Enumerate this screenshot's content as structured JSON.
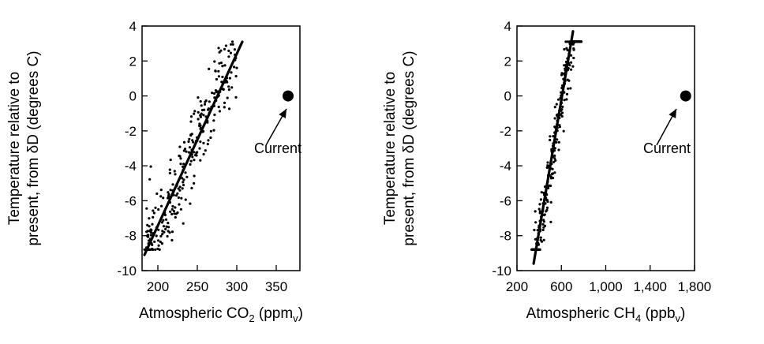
{
  "chart_data": [
    {
      "type": "scatter",
      "xlabel_main": "Atmospheric CO",
      "xlabel_sub": "2",
      "xlabel_unit_open": " (ppm",
      "xlabel_unit_sub": "v",
      "xlabel_unit_close": ")",
      "ylabel_line1": "Temperature relative to",
      "ylabel_line2": "present, from δD (degrees C)",
      "xlim": [
        180,
        380
      ],
      "ylim": [
        -10,
        4
      ],
      "xticks": [
        200,
        250,
        300,
        350
      ],
      "xtick_labels": [
        "200",
        "250",
        "300",
        "350"
      ],
      "yticks": [
        -10,
        -8,
        -6,
        -4,
        -2,
        0,
        2,
        4
      ],
      "ytick_labels": [
        "-10",
        "-8",
        "-6",
        "-4",
        "-2",
        "0",
        "2",
        "4"
      ],
      "fit_line": {
        "x": [
          183,
          307
        ],
        "y": [
          -9.1,
          3.1
        ]
      },
      "scatter_trend": {
        "slope": 0.0984,
        "x_at_zero": 275.5,
        "spread_y": 1.2,
        "x_range": [
          183,
          300
        ],
        "n": 280,
        "seed": 11
      },
      "current_point": {
        "x": 365,
        "y": 0
      },
      "annotation": "Current"
    },
    {
      "type": "scatter",
      "xlabel_main": "Atmospheric CH",
      "xlabel_sub": "4",
      "xlabel_unit_open": " (ppb",
      "xlabel_unit_sub": "v",
      "xlabel_unit_close": ")",
      "ylabel_line1": "Temperature relative to",
      "ylabel_line2": "present, from δD (degrees C)",
      "xlim": [
        200,
        1800
      ],
      "ylim": [
        -10,
        4
      ],
      "xticks": [
        200,
        600,
        1000,
        1400,
        1800
      ],
      "xtick_labels": [
        "200",
        "600",
        "1,000",
        "1,400",
        "1,800"
      ],
      "yticks": [
        -10,
        -8,
        -6,
        -4,
        -2,
        0,
        2,
        4
      ],
      "ytick_labels": [
        "-10",
        "-8",
        "-6",
        "-4",
        "-2",
        "0",
        "2",
        "4"
      ],
      "fit_line": {
        "x": [
          350,
          705
        ],
        "y": [
          -9.6,
          3.7
        ]
      },
      "scatter_trend": {
        "slope": 0.0375,
        "x_at_zero": 610,
        "spread_y": 0.9,
        "x_range": [
          330,
          780
        ],
        "n": 320,
        "seed": 23
      },
      "current_point": {
        "x": 1720,
        "y": 0
      },
      "annotation": "Current"
    }
  ]
}
